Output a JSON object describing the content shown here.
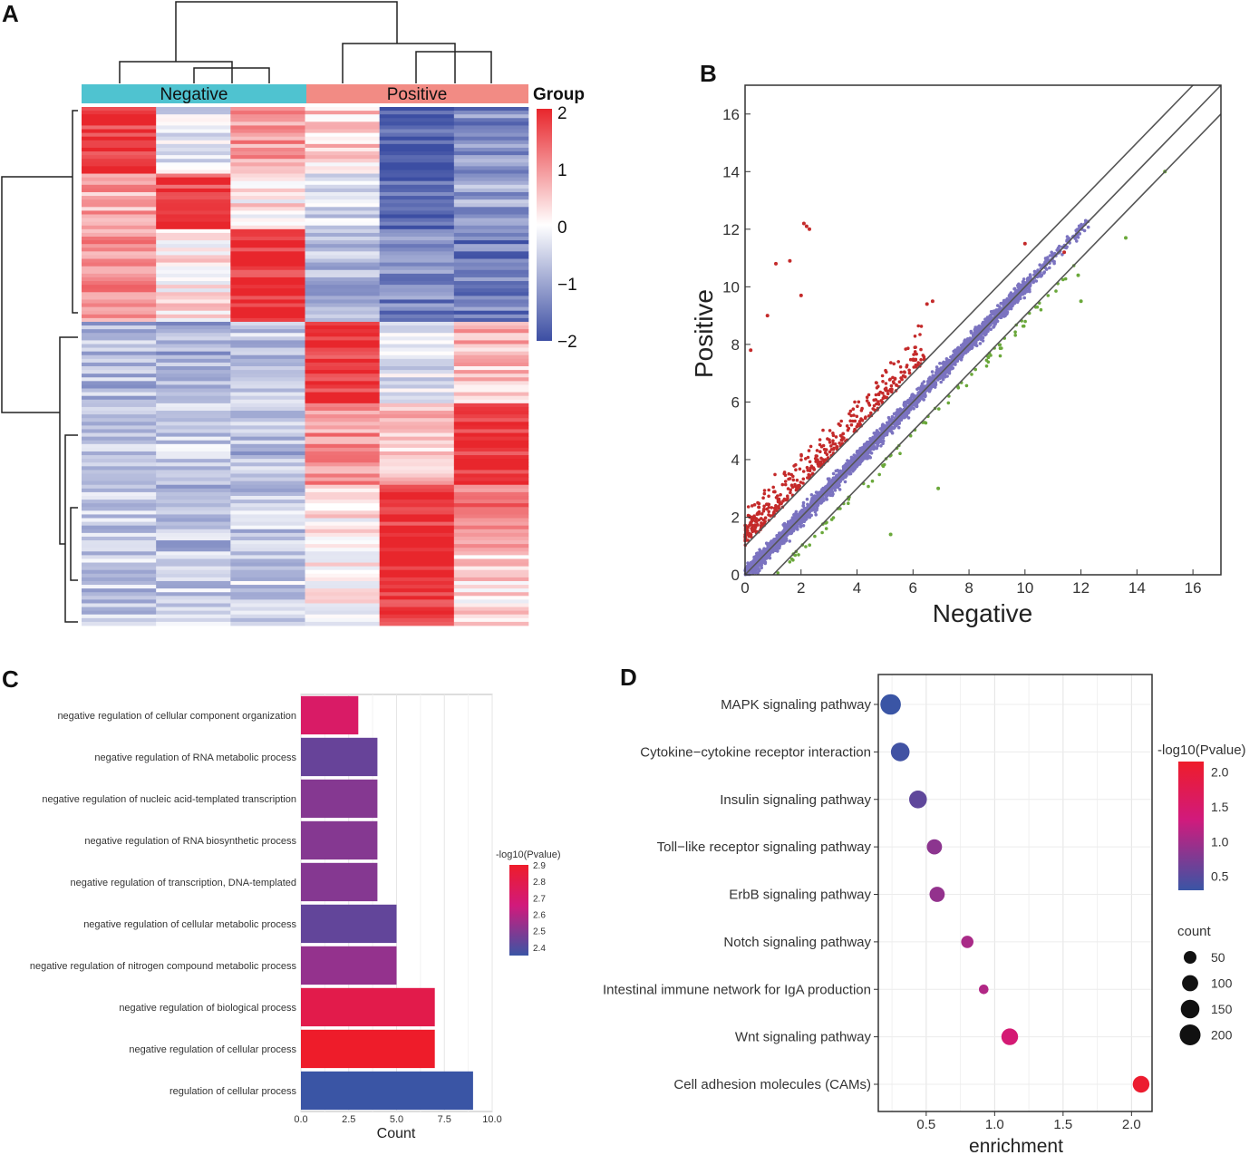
{
  "panel_labels": [
    "A",
    "B",
    "C",
    "D"
  ],
  "chart_data": [
    {
      "panel": "A",
      "type": "heatmap",
      "groups": [
        {
          "name": "Negative",
          "color": "#4fc3d0"
        },
        {
          "name": "Positive",
          "color": "#f28b84"
        }
      ],
      "legend_title": "Group",
      "color_ticks": [
        "2",
        "1",
        "0",
        "−1",
        "−2"
      ],
      "color_range": [
        -2,
        2
      ],
      "colors": {
        "high": "#e8262c",
        "mid": "#ffffff",
        "low": "#3c4ea3"
      },
      "columns": 6,
      "row_blocks": [
        {
          "rows": 18,
          "pattern": [
            1.9,
            -0.3,
            0.9,
            0.4,
            -1.9,
            -1.3
          ]
        },
        {
          "rows": 15,
          "pattern": [
            0.8,
            1.8,
            0.2,
            -0.5,
            -1.8,
            -1.0
          ]
        },
        {
          "rows": 25,
          "pattern": [
            1.0,
            0.2,
            1.9,
            -0.8,
            -1.4,
            -1.5
          ]
        },
        {
          "rows": 22,
          "pattern": [
            -0.8,
            -0.9,
            -0.7,
            1.9,
            -0.3,
            0.6
          ]
        },
        {
          "rows": 22,
          "pattern": [
            -0.7,
            -0.6,
            -0.8,
            1.0,
            0.5,
            1.9
          ]
        },
        {
          "rows": 18,
          "pattern": [
            -0.6,
            -0.7,
            -0.6,
            0.2,
            1.9,
            1.2
          ]
        },
        {
          "rows": 20,
          "pattern": [
            -0.6,
            -0.6,
            -0.5,
            0.0,
            1.9,
            0.3
          ]
        }
      ]
    },
    {
      "panel": "B",
      "type": "scatter",
      "xlabel": "Negative",
      "ylabel": "Positive",
      "xlim": [
        0,
        17
      ],
      "ylim": [
        0,
        17
      ],
      "ticks": [
        0,
        2,
        4,
        6,
        8,
        10,
        12,
        14,
        16
      ],
      "colors": {
        "up": "#c42a2a",
        "neutral": "#7b73c0",
        "down": "#6aa83a"
      },
      "reference_lines": [
        {
          "intercept": 0.0,
          "slope": 1
        },
        {
          "intercept": 1.0,
          "slope": 1
        },
        {
          "intercept": -1.0,
          "slope": 1
        }
      ],
      "outliers": [
        {
          "x": 2.1,
          "y": 12.2,
          "c": "up"
        },
        {
          "x": 2.2,
          "y": 12.1,
          "c": "up"
        },
        {
          "x": 2.3,
          "y": 12.0,
          "c": "up"
        },
        {
          "x": 1.6,
          "y": 10.9,
          "c": "up"
        },
        {
          "x": 1.1,
          "y": 10.8,
          "c": "up"
        },
        {
          "x": 2.0,
          "y": 9.7,
          "c": "up"
        },
        {
          "x": 0.8,
          "y": 9.0,
          "c": "up"
        },
        {
          "x": 0.2,
          "y": 7.8,
          "c": "up"
        },
        {
          "x": 6.5,
          "y": 9.4,
          "c": "up"
        },
        {
          "x": 6.7,
          "y": 9.5,
          "c": "up"
        },
        {
          "x": 10.0,
          "y": 11.5,
          "c": "up"
        },
        {
          "x": 11.4,
          "y": 11.2,
          "c": "up"
        },
        {
          "x": 13.6,
          "y": 11.7,
          "c": "down"
        },
        {
          "x": 15.0,
          "y": 14.0,
          "c": "down"
        },
        {
          "x": 11.9,
          "y": 10.4,
          "c": "down"
        },
        {
          "x": 12.0,
          "y": 9.5,
          "c": "down"
        },
        {
          "x": 6.9,
          "y": 3.0,
          "c": "down"
        },
        {
          "x": 5.2,
          "y": 1.4,
          "c": "down"
        }
      ]
    },
    {
      "panel": "C",
      "type": "bar",
      "orientation": "horizontal",
      "xlabel": "Count",
      "xlim": [
        0,
        10
      ],
      "ticks": [
        "0.0",
        "2.5",
        "5.0",
        "7.5",
        "10.0"
      ],
      "legend_title": "-log10(Pvalue)",
      "legend_ticks": [
        "2.9",
        "2.8",
        "2.7",
        "2.6",
        "2.5",
        "2.4"
      ],
      "legend_range": [
        2.35,
        2.9
      ],
      "categories": [
        "negative regulation of cellular component organization",
        "negative regulation of RNA metabolic process",
        "negative regulation of nucleic acid-templated transcription",
        "negative regulation of RNA biosynthetic process",
        "negative regulation of transcription, DNA-templated",
        "negative regulation of cellular metabolic process",
        "negative regulation of nitrogen compound metabolic process",
        "negative regulation of biological process",
        "negative regulation of cellular process",
        "regulation of cellular process"
      ],
      "values": [
        3,
        4,
        4,
        4,
        4,
        5,
        5,
        7,
        7,
        9
      ],
      "pvalue": [
        2.72,
        2.44,
        2.5,
        2.5,
        2.5,
        2.43,
        2.53,
        2.8,
        2.9,
        2.35
      ]
    },
    {
      "panel": "D",
      "type": "scatter",
      "subtype": "bubble",
      "xlabel": "enrichment",
      "xlim": [
        0.15,
        2.15
      ],
      "ticks": [
        "0.5",
        "1.0",
        "1.5",
        "2.0"
      ],
      "color_legend_title": "-log10(Pvalue)",
      "color_ticks": [
        "2.0",
        "1.5",
        "1.0",
        "0.5"
      ],
      "color_range": [
        0.3,
        2.15
      ],
      "size_legend_title": "count",
      "size_ticks": [
        "50",
        "100",
        "150",
        "200"
      ],
      "categories": [
        "MAPK signaling pathway",
        "Cytokine−cytokine receptor interaction",
        "Insulin signaling pathway",
        "Toll−like receptor signaling pathway",
        "ErbB signaling pathway",
        "Notch signaling pathway",
        "Intestinal immune network for IgA production",
        "Wnt signaling pathway",
        "Cell adhesion molecules (CAMs)"
      ],
      "enrichment": [
        0.24,
        0.31,
        0.44,
        0.56,
        0.58,
        0.8,
        0.92,
        1.11,
        2.07
      ],
      "count": [
        190,
        150,
        130,
        85,
        85,
        45,
        20,
        110,
        110
      ],
      "pvalue": [
        0.3,
        0.35,
        0.55,
        0.85,
        0.9,
        1.05,
        1.1,
        1.4,
        2.1
      ]
    }
  ]
}
